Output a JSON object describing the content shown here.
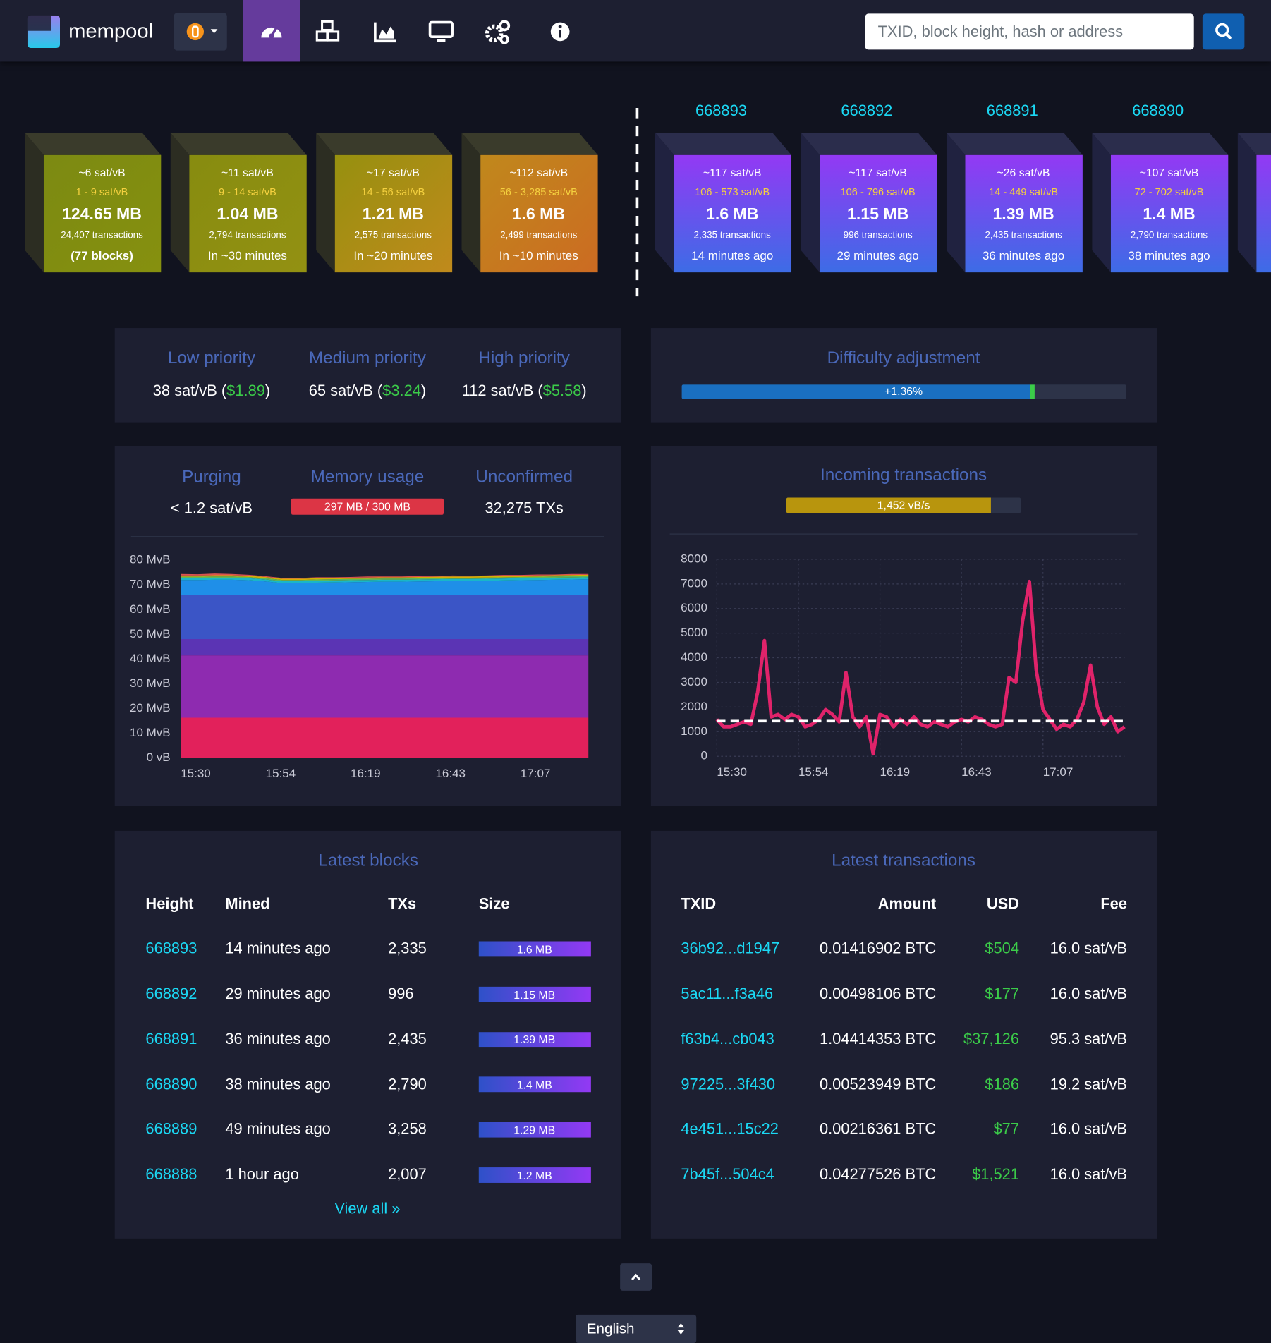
{
  "header": {
    "logo": "mempool",
    "search_placeholder": "TXID, block height, hash or address"
  },
  "mempool_blocks": [
    {
      "fee": "~6 sat/vB",
      "range": "1 - 9 sat/vB",
      "size": "124.65 MB",
      "txs": "24,407 transactions",
      "time": "(77 blocks)"
    },
    {
      "fee": "~11 sat/vB",
      "range": "9 - 14 sat/vB",
      "size": "1.04 MB",
      "txs": "2,794 transactions",
      "time": "In ~30 minutes"
    },
    {
      "fee": "~17 sat/vB",
      "range": "14 - 56 sat/vB",
      "size": "1.21 MB",
      "txs": "2,575 transactions",
      "time": "In ~20 minutes"
    },
    {
      "fee": "~112 sat/vB",
      "range": "56 - 3,285 sat/vB",
      "size": "1.6 MB",
      "txs": "2,499 transactions",
      "time": "In ~10 minutes"
    }
  ],
  "blockchain_blocks": [
    {
      "height": "668893",
      "fee": "~117 sat/vB",
      "range": "106 - 573 sat/vB",
      "size": "1.6 MB",
      "txs": "2,335 transactions",
      "time": "14 minutes ago"
    },
    {
      "height": "668892",
      "fee": "~117 sat/vB",
      "range": "106 - 796 sat/vB",
      "size": "1.15 MB",
      "txs": "996 transactions",
      "time": "29 minutes ago"
    },
    {
      "height": "668891",
      "fee": "~26 sat/vB",
      "range": "14 - 449 sat/vB",
      "size": "1.39 MB",
      "txs": "2,435 transactions",
      "time": "36 minutes ago"
    },
    {
      "height": "668890",
      "fee": "~107 sat/vB",
      "range": "72 - 702 sat/vB",
      "size": "1.4 MB",
      "txs": "2,790 transactions",
      "time": "38 minutes ago"
    }
  ],
  "fees": [
    {
      "label": "Low priority",
      "rate": "38 sat/vB (",
      "usd": "$1.89",
      "close": ")"
    },
    {
      "label": "Medium priority",
      "rate": "65 sat/vB (",
      "usd": "$3.24",
      "close": ")"
    },
    {
      "label": "High priority",
      "rate": "112 sat/vB (",
      "usd": "$5.58",
      "close": ")"
    }
  ],
  "difficulty": {
    "title": "Difficulty adjustment",
    "change": "+1.36%"
  },
  "mempool_info": [
    {
      "label": "Purging",
      "value": "< 1.2 sat/vB"
    },
    {
      "label": "Memory usage",
      "value": "297 MB / 300 MB"
    },
    {
      "label": "Unconfirmed",
      "value": "32,275 TXs"
    }
  ],
  "incoming": {
    "title": "Incoming transactions",
    "rate": "1,452 vB/s"
  },
  "latest_blocks": {
    "title": "Latest blocks",
    "columns": [
      "Height",
      "Mined",
      "TXs",
      "Size"
    ],
    "rows": [
      [
        "668893",
        "14 minutes ago",
        "2,335",
        "1.6 MB"
      ],
      [
        "668892",
        "29 minutes ago",
        "996",
        "1.15 MB"
      ],
      [
        "668891",
        "36 minutes ago",
        "2,435",
        "1.39 MB"
      ],
      [
        "668890",
        "38 minutes ago",
        "2,790",
        "1.4 MB"
      ],
      [
        "668889",
        "49 minutes ago",
        "3,258",
        "1.29 MB"
      ],
      [
        "668888",
        "1 hour ago",
        "2,007",
        "1.2 MB"
      ]
    ],
    "view_all": "View all »"
  },
  "latest_transactions": {
    "title": "Latest transactions",
    "columns": [
      "TXID",
      "Amount",
      "USD",
      "Fee"
    ],
    "rows": [
      [
        "36b92...d1947",
        "0.01416902 BTC",
        "$504",
        "16.0 sat/vB"
      ],
      [
        "5ac11...f3a46",
        "0.00498106 BTC",
        "$177",
        "16.0 sat/vB"
      ],
      [
        "f63b4...cb043",
        "1.04414353 BTC",
        "$37,126",
        "95.3 sat/vB"
      ],
      [
        "97225...3f430",
        "0.00523949 BTC",
        "$186",
        "19.2 sat/vB"
      ],
      [
        "4e451...15c22",
        "0.00216361 BTC",
        "$77",
        "16.0 sat/vB"
      ],
      [
        "7b45f...504c4",
        "0.04277526 BTC",
        "$1,521",
        "16.0 sat/vB"
      ]
    ]
  },
  "footer": {
    "language": "English"
  },
  "chart_data": [
    {
      "type": "area",
      "stacked": true,
      "categories": [
        "15:30",
        null,
        null,
        null,
        null,
        "15:54",
        null,
        null,
        null,
        null,
        "16:19",
        null,
        null,
        null,
        null,
        "16:43",
        null,
        null,
        null,
        null,
        "17:07",
        null,
        null,
        null,
        null
      ],
      "ylim": [
        0,
        80
      ],
      "yticks": [
        {
          "value": 0,
          "label": "0 vB"
        },
        {
          "value": 10,
          "label": "10 MvB"
        },
        {
          "value": 20,
          "label": "20 MvB"
        },
        {
          "value": 30,
          "label": "30 MvB"
        },
        {
          "value": 40,
          "label": "40 MvB"
        },
        {
          "value": 50,
          "label": "50 MvB"
        },
        {
          "value": 60,
          "label": "60 MvB"
        },
        {
          "value": 70,
          "label": "70 MvB"
        },
        {
          "value": 80,
          "label": "80 MvB"
        }
      ],
      "series": [
        {
          "color": "#e2215b",
          "values": [
            16.3,
            16.3,
            16.3,
            16.3,
            16.3,
            16.3,
            16.3,
            16.3,
            16.3,
            16.3,
            16.3,
            16.3,
            16.3,
            16.3,
            16.3,
            16.3,
            16.3,
            16.3,
            16.3,
            16.3,
            16.3,
            16.3,
            16.3,
            16.3,
            16.3
          ]
        },
        {
          "color": "#8e2bb0",
          "values": [
            25.2,
            25.2,
            25.2,
            25.2,
            25.2,
            25.2,
            25.2,
            25.2,
            25.2,
            25.2,
            25.2,
            25.2,
            25.2,
            25.2,
            25.2,
            25.2,
            25.2,
            25.2,
            25.2,
            25.2,
            25.2,
            25.2,
            25.2,
            25.2,
            25.2
          ]
        },
        {
          "color": "#5b34b4",
          "values": [
            6.6,
            6.6,
            6.6,
            6.6,
            6.6,
            6.6,
            6.6,
            6.6,
            6.6,
            6.6,
            6.6,
            6.6,
            6.6,
            6.6,
            6.6,
            6.6,
            6.6,
            6.6,
            6.6,
            6.6,
            6.6,
            6.6,
            6.6,
            6.6,
            6.6
          ]
        },
        {
          "color": "#3b55c6",
          "values": [
            17.7,
            17.7,
            17.7,
            17.7,
            17.7,
            17.7,
            17.7,
            17.7,
            17.7,
            17.7,
            17.7,
            17.7,
            17.7,
            17.7,
            17.7,
            17.7,
            17.7,
            17.7,
            17.7,
            17.7,
            17.7,
            17.7,
            17.7,
            17.7,
            17.7
          ]
        },
        {
          "color": "#1f8fe8",
          "values": [
            6.2,
            6.2,
            6.3,
            6.3,
            6.1,
            5.6,
            4.9,
            4.9,
            5.1,
            5.2,
            5.3,
            5.4,
            5.5,
            5.5,
            5.6,
            5.7,
            5.8,
            5.8,
            5.9,
            6.0,
            6.1,
            6.2,
            6.3,
            6.4,
            6.5
          ]
        },
        {
          "color": "#19b6c9",
          "values": [
            0.8,
            0.8,
            0.8,
            0.8,
            0.8,
            0.8,
            0.8,
            0.8,
            0.8,
            0.8,
            0.8,
            0.8,
            0.8,
            0.8,
            0.8,
            0.8,
            0.8,
            0.8,
            0.8,
            0.8,
            0.8,
            0.8,
            0.8,
            0.8,
            0.8
          ]
        },
        {
          "color": "#5cb85c",
          "values": [
            0.5,
            0.5,
            0.5,
            0.5,
            0.5,
            0.5,
            0.5,
            0.5,
            0.5,
            0.5,
            0.5,
            0.5,
            0.5,
            0.5,
            0.5,
            0.5,
            0.5,
            0.5,
            0.5,
            0.5,
            0.5,
            0.5,
            0.5,
            0.5,
            0.5
          ]
        },
        {
          "color": "#d4b106",
          "values": [
            0.5,
            0.5,
            0.5,
            0.5,
            0.5,
            0.5,
            0.5,
            0.5,
            0.5,
            0.5,
            0.5,
            0.5,
            0.5,
            0.5,
            0.5,
            0.5,
            0.5,
            0.5,
            0.5,
            0.5,
            0.5,
            0.5,
            0.5,
            0.5,
            0.5
          ]
        },
        {
          "color": "#d9534f",
          "values": [
            0.6,
            0.5,
            0.7,
            0.5,
            0.4,
            0.3,
            0.3,
            0.3,
            0.4,
            0.3,
            0.3,
            0.4,
            0.3,
            0.3,
            0.4,
            0.3,
            0.4,
            0.3,
            0.3,
            0.4,
            0.3,
            0.4,
            0.3,
            0.4,
            0.3
          ]
        }
      ]
    },
    {
      "type": "line",
      "grid": true,
      "categories": [
        "15:30",
        null,
        null,
        null,
        null,
        null,
        null,
        null,
        null,
        null,
        null,
        null,
        "15:54",
        null,
        null,
        null,
        null,
        null,
        null,
        null,
        null,
        null,
        null,
        null,
        "16:19",
        null,
        null,
        null,
        null,
        null,
        null,
        null,
        null,
        null,
        null,
        null,
        "16:43",
        null,
        null,
        null,
        null,
        null,
        null,
        null,
        null,
        null,
        null,
        null,
        "17:07",
        null,
        null,
        null,
        null,
        null,
        null,
        null,
        null,
        null,
        null,
        null,
        null
      ],
      "ylim": [
        0,
        8000
      ],
      "yticks": [
        0,
        1000,
        2000,
        3000,
        4000,
        5000,
        6000,
        7000,
        8000
      ],
      "average": 1430,
      "series": [
        {
          "color": "#e0236a",
          "values": [
            1500,
            1200,
            1200,
            1300,
            1400,
            1300,
            2600,
            4700,
            1600,
            1700,
            1500,
            1700,
            1600,
            1200,
            1300,
            1500,
            1900,
            1700,
            1400,
            3400,
            1600,
            1200,
            1600,
            100,
            1700,
            1600,
            1200,
            1500,
            1300,
            1600,
            1300,
            1200,
            1400,
            1300,
            1200,
            1400,
            1500,
            1400,
            1600,
            1500,
            1300,
            1200,
            1300,
            3200,
            3000,
            5500,
            7100,
            3500,
            1900,
            1500,
            1100,
            1300,
            1200,
            1500,
            2200,
            3700,
            2000,
            1300,
            1600,
            1000,
            1200
          ]
        }
      ]
    }
  ]
}
